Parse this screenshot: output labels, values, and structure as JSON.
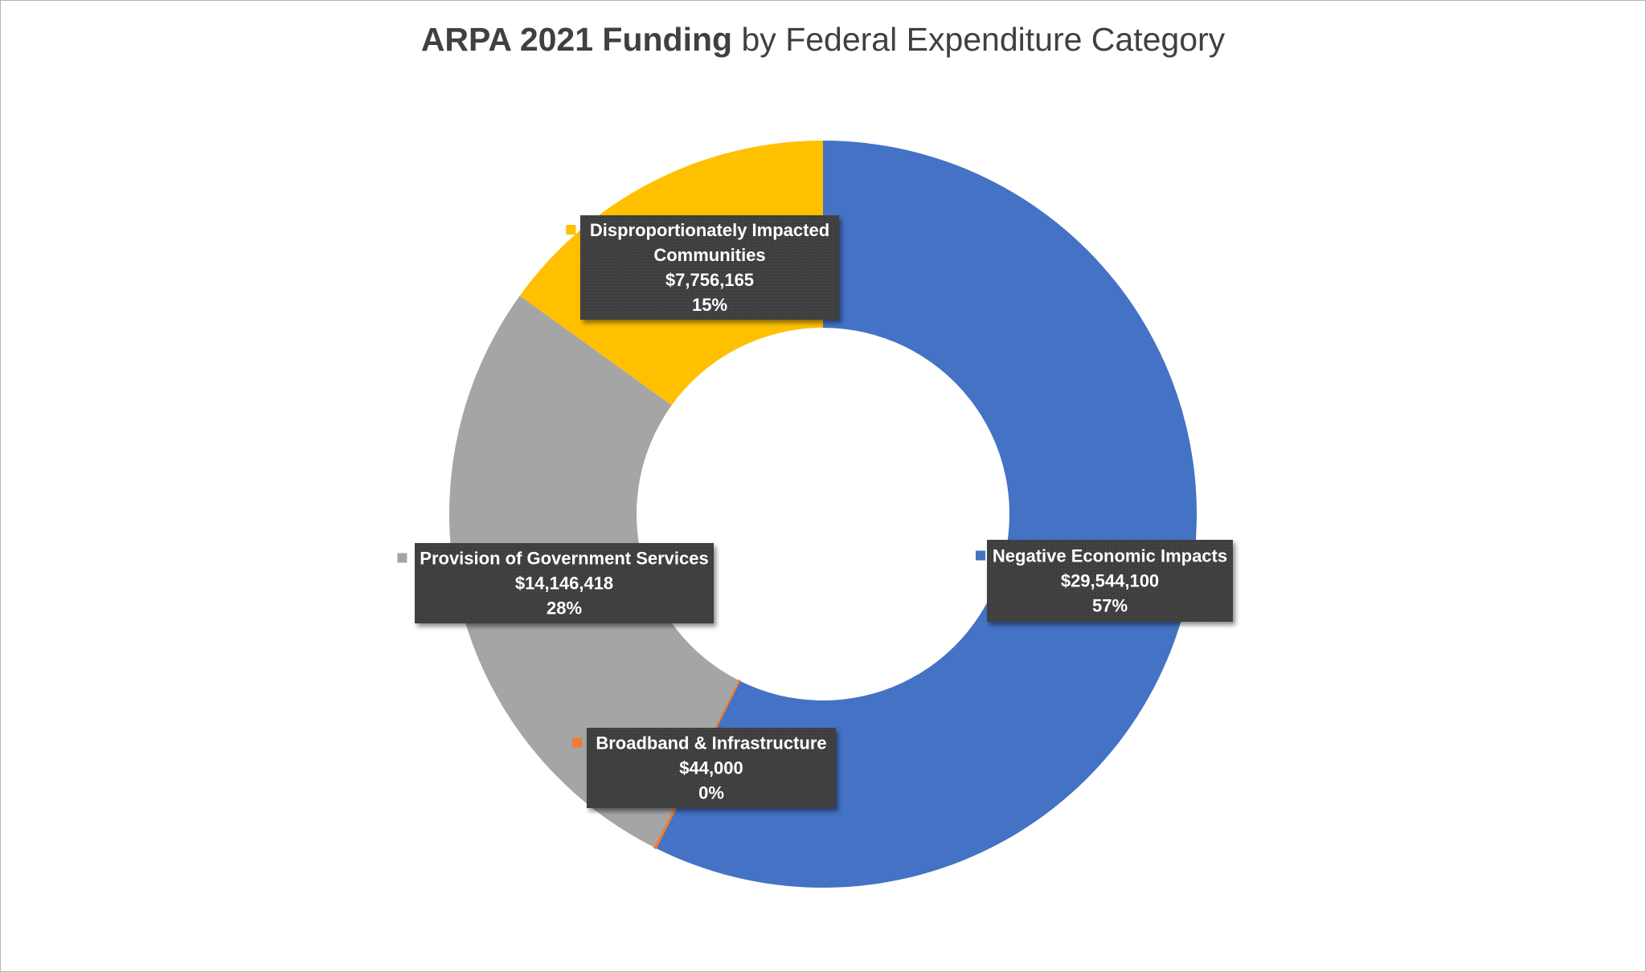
{
  "chart_data": {
    "type": "pie",
    "variant": "doughnut",
    "title_bold": "ARPA 2021 Funding",
    "title_rest": "by Federal Expenditure Category",
    "slices": [
      {
        "name": "Negative Economic Impacts",
        "value": 29544100,
        "value_label": "$29,544,100",
        "percent_label": "57%",
        "color": "#4472c4"
      },
      {
        "name": "Broadband & Infrastructure",
        "value": 44000,
        "value_label": "$44,000",
        "percent_label": "0%",
        "color": "#ed7d31"
      },
      {
        "name": "Provision of Government Services",
        "value": 14146418,
        "value_label": "$14,146,418",
        "percent_label": "28%",
        "color": "#a5a5a5"
      },
      {
        "name": "Disproportionately Impacted Communities",
        "value": 7756165,
        "value_label": "$7,756,165",
        "percent_label": "15%",
        "color": "#ffc000"
      }
    ],
    "legend": "none (category names shown in data callouts)"
  }
}
